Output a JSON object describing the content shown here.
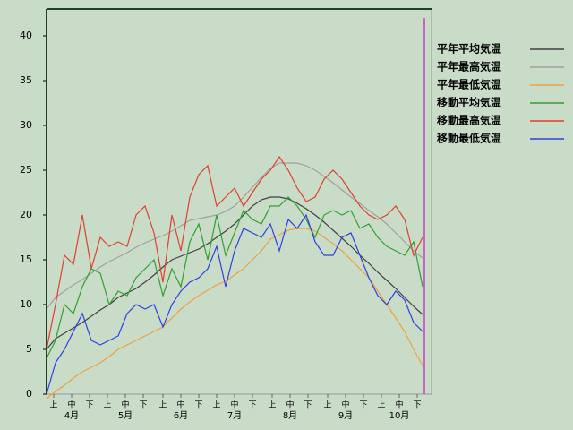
{
  "chart_data": {
    "type": "line",
    "xlim": [
      0,
      215
    ],
    "ylim": [
      0,
      43
    ],
    "yticks": [
      0,
      5,
      10,
      15,
      20,
      25,
      30,
      35,
      40
    ],
    "xticks": [
      {
        "value": 4,
        "label": "上"
      },
      {
        "value": 14,
        "label": "中"
      },
      {
        "value": 24,
        "label": "下"
      },
      {
        "value": 34,
        "label": "上"
      },
      {
        "value": 44,
        "label": "中"
      },
      {
        "value": 54,
        "label": "下"
      },
      {
        "value": 65,
        "label": "上"
      },
      {
        "value": 75,
        "label": "中"
      },
      {
        "value": 85,
        "label": "下"
      },
      {
        "value": 95,
        "label": "上"
      },
      {
        "value": 105,
        "label": "中"
      },
      {
        "value": 115,
        "label": "下"
      },
      {
        "value": 126,
        "label": "上"
      },
      {
        "value": 136,
        "label": "中"
      },
      {
        "value": 146,
        "label": "下"
      },
      {
        "value": 157,
        "label": "上"
      },
      {
        "value": 167,
        "label": "中"
      },
      {
        "value": 177,
        "label": "下"
      },
      {
        "value": 187,
        "label": "上"
      },
      {
        "value": 197,
        "label": "中"
      },
      {
        "value": 207,
        "label": "下"
      }
    ],
    "month_labels": [
      {
        "value": 14,
        "label": "4月"
      },
      {
        "value": 44,
        "label": "5月"
      },
      {
        "value": 75,
        "label": "6月"
      },
      {
        "value": 105,
        "label": "7月"
      },
      {
        "value": 136,
        "label": "8月"
      },
      {
        "value": 167,
        "label": "9月"
      },
      {
        "value": 197,
        "label": "10月"
      }
    ],
    "reference_line": {
      "x": 211,
      "color": "#c040c0"
    },
    "x": [
      0,
      5,
      10,
      15,
      20,
      25,
      30,
      35,
      40,
      45,
      50,
      55,
      60,
      65,
      70,
      75,
      80,
      85,
      90,
      95,
      100,
      105,
      110,
      115,
      120,
      125,
      130,
      135,
      140,
      145,
      150,
      155,
      160,
      165,
      170,
      175,
      180,
      185,
      190,
      195,
      200,
      205,
      210
    ],
    "series": [
      {
        "name": "平年平均気温",
        "color": "#404040",
        "values": [
          5,
          6.2,
          6.8,
          7.4,
          8,
          8.7,
          9.4,
          10,
          10.8,
          11.3,
          11.8,
          12.5,
          13.3,
          14.2,
          15,
          15.4,
          15.8,
          16.2,
          16.8,
          17.5,
          18.2,
          19,
          20,
          21,
          21.7,
          22,
          22,
          21.8,
          21.3,
          20.7,
          20,
          19.2,
          18.3,
          17.4,
          16.5,
          15.5,
          14.6,
          13.6,
          12.7,
          11.8,
          10.8,
          9.8,
          8.9
        ]
      },
      {
        "name": "平年最高気温",
        "color": "#a0a0a0",
        "values": [
          9.5,
          10.8,
          11.5,
          12.2,
          12.8,
          13.5,
          14.2,
          14.8,
          15.3,
          15.8,
          16.4,
          16.9,
          17.3,
          17.7,
          18.2,
          18.8,
          19.4,
          19.6,
          19.8,
          20,
          20.4,
          21,
          22,
          23.1,
          24.2,
          25.2,
          25.8,
          25.8,
          25.8,
          25.5,
          25,
          24.3,
          23.6,
          22.8,
          22,
          21.3,
          20.5,
          19.8,
          19,
          18,
          17,
          16,
          15.2
        ]
      },
      {
        "name": "平年最低気温",
        "color": "#f0a040",
        "values": [
          -0.5,
          0.3,
          1,
          1.8,
          2.5,
          3,
          3.5,
          4.2,
          5,
          5.5,
          6,
          6.5,
          7,
          7.5,
          8.5,
          9.5,
          10.3,
          11,
          11.6,
          12.2,
          12.6,
          13.3,
          14,
          15,
          16,
          17.3,
          17.8,
          18.3,
          18.5,
          18.5,
          18.2,
          17.5,
          16.8,
          16,
          15,
          14,
          13,
          11.5,
          10,
          8.5,
          7,
          5,
          3.2
        ]
      },
      {
        "name": "移動平均気温",
        "color": "#30a030",
        "values": [
          4,
          6,
          10,
          9,
          12,
          14,
          13.5,
          10,
          11.5,
          11,
          13,
          14,
          15,
          11,
          14,
          12,
          17,
          19,
          15,
          20,
          15.5,
          18,
          20.5,
          19.5,
          19,
          21,
          21,
          22,
          21,
          19.5,
          17.5,
          20,
          20.5,
          20,
          20.5,
          18.5,
          19,
          17.5,
          16.5,
          16,
          15.5,
          17,
          12
        ]
      },
      {
        "name": "移動最高気温",
        "color": "#e04030",
        "values": [
          5,
          10,
          15.5,
          14.5,
          20,
          14,
          17.5,
          16.5,
          17,
          16.5,
          20,
          21,
          18,
          12.5,
          20,
          16,
          22,
          24.5,
          25.5,
          21,
          22,
          23,
          21,
          22.5,
          24,
          25,
          26.5,
          25,
          23,
          21.5,
          22,
          24,
          25,
          24,
          22.5,
          21,
          20,
          19.5,
          20,
          21,
          19.5,
          15.5,
          17.5
        ]
      },
      {
        "name": "移動最低気温",
        "color": "#3040e0",
        "values": [
          0,
          3.5,
          5,
          7,
          9,
          6,
          5.5,
          6,
          6.5,
          9,
          10,
          9.5,
          10,
          7.5,
          10,
          11.5,
          12.5,
          13,
          14,
          16.5,
          12,
          16,
          18.5,
          18,
          17.5,
          19,
          16,
          19.5,
          18.5,
          20,
          17,
          15.5,
          15.5,
          17.5,
          18,
          15.5,
          13,
          11,
          10,
          11.5,
          10.5,
          8,
          7
        ]
      }
    ]
  }
}
